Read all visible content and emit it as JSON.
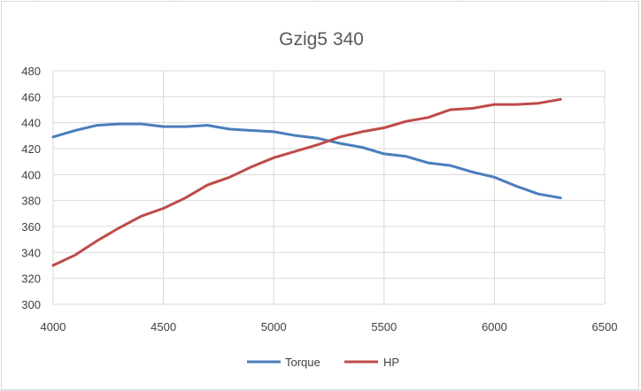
{
  "chart_data": {
    "type": "line",
    "title": "Gzig5 340",
    "xlabel": "",
    "ylabel": "",
    "xlim": [
      4000,
      6500
    ],
    "ylim": [
      300,
      480
    ],
    "x_ticks": [
      4000,
      4500,
      5000,
      5500,
      6000,
      6500
    ],
    "y_ticks": [
      300,
      320,
      340,
      360,
      380,
      400,
      420,
      440,
      460,
      480
    ],
    "grid": true,
    "legend_position": "bottom",
    "series": [
      {
        "name": "Torque",
        "color": "#4a7ebb",
        "x": [
          4000,
          4100,
          4200,
          4300,
          4400,
          4500,
          4600,
          4700,
          4800,
          4900,
          5000,
          5100,
          5200,
          5300,
          5400,
          5500,
          5600,
          5700,
          5800,
          5900,
          6000,
          6100,
          6200,
          6300
        ],
        "values": [
          429,
          434,
          438,
          439,
          439,
          437,
          437,
          438,
          435,
          434,
          433,
          430,
          428,
          424,
          421,
          416,
          414,
          409,
          407,
          402,
          398,
          391,
          385,
          382
        ]
      },
      {
        "name": "HP",
        "color": "#be4b48",
        "x": [
          4000,
          4100,
          4200,
          4300,
          4400,
          4500,
          4600,
          4700,
          4800,
          4900,
          5000,
          5100,
          5200,
          5300,
          5400,
          5500,
          5600,
          5700,
          5800,
          5900,
          6000,
          6100,
          6200,
          6300
        ],
        "values": [
          330,
          338,
          349,
          359,
          368,
          374,
          382,
          392,
          398,
          406,
          413,
          418,
          423,
          429,
          433,
          436,
          441,
          444,
          450,
          451,
          454,
          454,
          455,
          458
        ]
      }
    ]
  }
}
